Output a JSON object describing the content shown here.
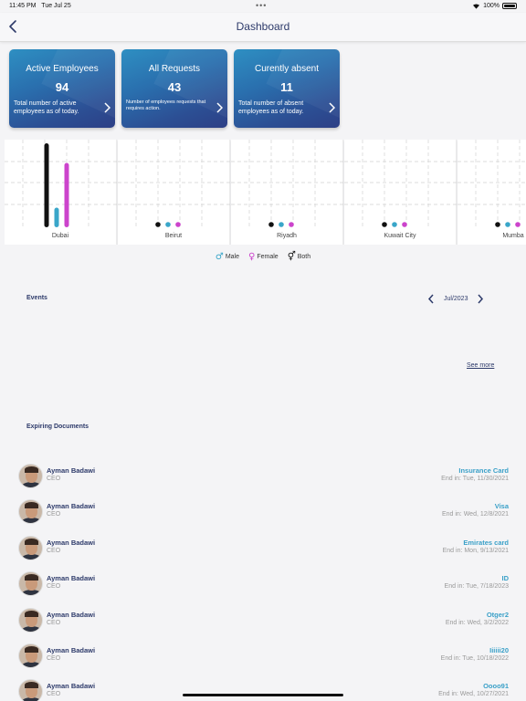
{
  "status": {
    "time": "11:45 PM",
    "date": "Tue Jul 25",
    "battery": "100%"
  },
  "navbar": {
    "title": "Dashboard"
  },
  "cards": [
    {
      "title": "Active Employees",
      "value": "94",
      "desc": "Total number of active employees as of today."
    },
    {
      "title": "All Requests",
      "value": "43",
      "desc": "Number of employees requests that requires action."
    },
    {
      "title": "Curently absent",
      "value": "11",
      "desc": "Total number of absent employees as of today."
    }
  ],
  "chart_data": {
    "type": "bar",
    "categories": [
      "Dubai",
      "Beirut",
      "Riyadh",
      "Kuwait City",
      "Mumba"
    ],
    "series": [
      {
        "name": "Both",
        "values": [
          94,
          0,
          0,
          0,
          0
        ]
      },
      {
        "name": "Male",
        "values": [
          22,
          0,
          0,
          0,
          0
        ]
      },
      {
        "name": "Female",
        "values": [
          72,
          0,
          0,
          0,
          0
        ]
      }
    ],
    "ylim": [
      0,
      94
    ],
    "colors": {
      "Both": "#111111",
      "Male": "#3aa6c9",
      "Female": "#cc44cc"
    },
    "grid": true,
    "legend": "bottom"
  },
  "legend": [
    {
      "label": "Male",
      "icon": "male-icon",
      "symbol": "♂",
      "color": "#3aa6c9"
    },
    {
      "label": "Female",
      "icon": "female-icon",
      "symbol": "♀",
      "color": "#cc44cc"
    },
    {
      "label": "Both",
      "icon": "both-icon",
      "symbol": "⚥",
      "color": "#111111"
    }
  ],
  "events": {
    "label": "Events",
    "month": "Jul/2023",
    "see_more": "See more"
  },
  "documents": {
    "label": "Expiring Documents",
    "items": [
      {
        "name": "Ayman Badawi",
        "role": "CEO",
        "type": "Insurance Card",
        "end": "End in: Tue, 11/30/2021"
      },
      {
        "name": "Ayman Badawi",
        "role": "CEO",
        "type": "Visa",
        "end": "End in: Wed, 12/8/2021"
      },
      {
        "name": "Ayman Badawi",
        "role": "CEO",
        "type": "Emirates card",
        "end": "End in: Mon, 9/13/2021"
      },
      {
        "name": "Ayman Badawi",
        "role": "CEO",
        "type": "ID",
        "end": "End in: Tue, 7/18/2023"
      },
      {
        "name": "Ayman Badawi",
        "role": "CEO",
        "type": "Otger2",
        "end": "End in: Wed, 3/2/2022"
      },
      {
        "name": "Ayman Badawi",
        "role": "CEO",
        "type": "Iiiiii20",
        "end": "End in: Tue, 10/18/2022"
      },
      {
        "name": "Ayman Badawi",
        "role": "CEO",
        "type": "Oooo91",
        "end": "End in: Wed, 10/27/2021"
      }
    ]
  }
}
